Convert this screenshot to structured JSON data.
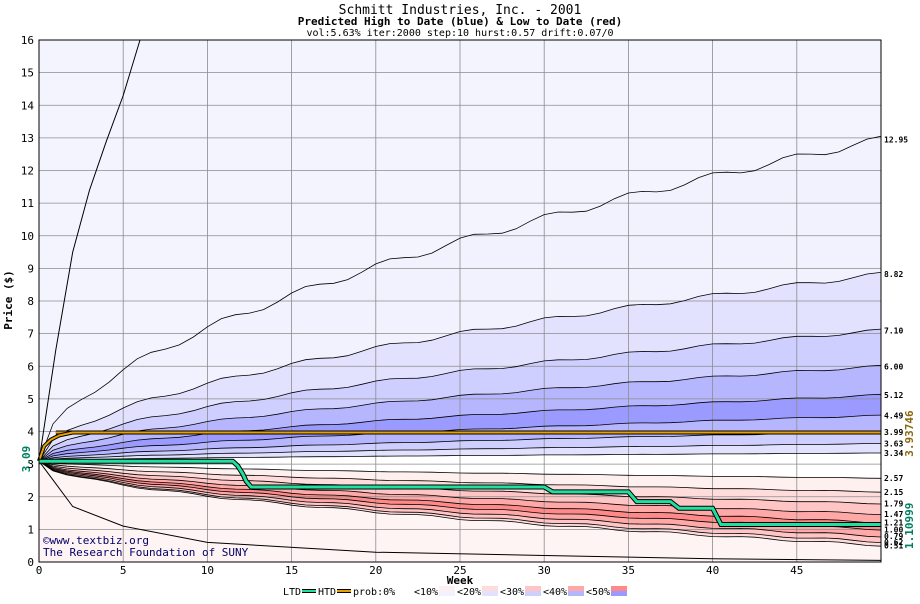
{
  "chart_data": {
    "type": "area",
    "title": "Schmitt Industries, Inc. - 2001",
    "subtitle": "Predicted High to Date (blue) &  Low to Date (red)",
    "params": "vol:5.63% iter:2000 step:10 hurst:0.57 drift:0.07/0",
    "xlabel": "Week",
    "ylabel": "Price ($)",
    "xlim": [
      0,
      50
    ],
    "ylim": [
      0,
      16
    ],
    "x_ticks": [
      0,
      5,
      10,
      15,
      20,
      25,
      30,
      35,
      40,
      45
    ],
    "y_ticks": [
      0,
      1,
      2,
      3,
      4,
      5,
      6,
      7,
      8,
      9,
      10,
      11,
      12,
      13,
      14,
      15,
      16
    ],
    "grid": true,
    "start_price": 3.09,
    "start_label": "3.09",
    "high_percentile_curves": [
      {
        "end": 12.95,
        "band": "<10%"
      },
      {
        "end": 8.82,
        "band": "<20%"
      },
      {
        "end": 7.1,
        "band": "<30%"
      },
      {
        "end": 6.0,
        "band": "<40%"
      },
      {
        "end": 5.12,
        "band": "<50%"
      },
      {
        "end": 4.49,
        "band": "<50%"
      },
      {
        "end": 3.99,
        "band": "<40%"
      },
      {
        "end": 3.63,
        "band": "<30%"
      },
      {
        "end": 3.34,
        "band": "<20%"
      }
    ],
    "low_percentile_curves": [
      {
        "end": 2.57,
        "band": "<10%"
      },
      {
        "end": 2.15,
        "band": "<20%"
      },
      {
        "end": 1.79,
        "band": "<30%"
      },
      {
        "end": 1.47,
        "band": "<40%"
      },
      {
        "end": 1.21,
        "band": "<50%"
      },
      {
        "end": 1.0,
        "band": "<50%"
      },
      {
        "end": 0.79,
        "band": "<40%"
      },
      {
        "end": 0.62,
        "band": "<30%"
      },
      {
        "end": 0.51,
        "band": "<20%"
      }
    ],
    "end_labels": [
      "12.95",
      "8.82",
      "7.10",
      "6.00",
      "5.12",
      "4.49",
      "3.99",
      "3.63",
      "3.34",
      "2.57",
      "2.15",
      "1.79",
      "1.47",
      "1.21",
      "1.00",
      "0.79",
      "0.62",
      "0.51"
    ],
    "extreme_high_line": {
      "x": [
        0,
        1,
        2,
        3,
        4,
        5,
        6
      ],
      "y": [
        3.09,
        6.5,
        9.5,
        11.4,
        12.9,
        14.3,
        16.0
      ]
    },
    "extreme_low_line": {
      "x": [
        0,
        1,
        2,
        5,
        10,
        20,
        30,
        40,
        50
      ],
      "y": [
        3.09,
        2.4,
        1.7,
        1.1,
        0.6,
        0.3,
        0.2,
        0.1,
        0.05
      ]
    },
    "ltd_series": {
      "name": "LTD",
      "x": [
        0,
        11.5,
        11.8,
        12.1,
        12.3,
        12.6,
        30,
        30.5,
        35,
        35.5,
        37.5,
        38,
        40,
        40.5,
        50
      ],
      "y": [
        3.09,
        3.09,
        2.95,
        2.7,
        2.48,
        2.3,
        2.3,
        2.15,
        2.15,
        1.85,
        1.85,
        1.65,
        1.65,
        1.15,
        1.15
      ]
    },
    "htd_series": {
      "name": "HTD",
      "x": [
        0,
        0.3,
        0.7,
        1.2,
        2,
        50
      ],
      "y": [
        3.09,
        3.55,
        3.75,
        3.88,
        3.97,
        3.97
      ]
    },
    "prob_line": {
      "name": "prob:0%",
      "value": 3.97
    },
    "right_annotations": [
      {
        "text": "3.93746",
        "value": 3.93746,
        "color": "#8B6914"
      },
      {
        "text": "1.10999",
        "value": 1.10999,
        "color": "#008060"
      }
    ],
    "legend": {
      "placement": "bottom",
      "items": [
        "LTD",
        "HTD",
        "prob:0%",
        "<10%",
        "<20%",
        "<30%",
        "<40%",
        "<50%"
      ]
    },
    "colors": {
      "ltd": "#20e0a0",
      "htd": "#20a060",
      "prob": "#e8a000",
      "blue_bands": [
        "#f2f2ff",
        "#e2e2ff",
        "#ceceff",
        "#b6b6ff",
        "#9a9aff"
      ],
      "red_bands": [
        "#fff0f0",
        "#ffdcdc",
        "#ffc4c4",
        "#ffa8a8",
        "#ff8888"
      ]
    }
  },
  "watermark": {
    "line1": "©www.textbiz.org",
    "line2": "The Research Foundation of SUNY"
  }
}
